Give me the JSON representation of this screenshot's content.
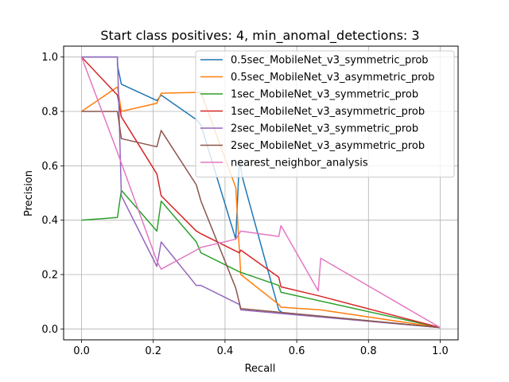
{
  "chart_data": {
    "type": "line",
    "title": "Start class positives: 4, min_anomal_detections: 3",
    "xlabel": "Recall",
    "ylabel": "Precision",
    "xlim": [
      -0.05,
      1.05
    ],
    "ylim": [
      -0.04,
      1.04
    ],
    "xticks": [
      "0.0",
      "0.2",
      "0.4",
      "0.6",
      "0.8",
      "1.0"
    ],
    "yticks": [
      "0.0",
      "0.2",
      "0.4",
      "0.6",
      "0.8",
      "1.0"
    ],
    "grid": true,
    "legend_position": "top-right",
    "series": [
      {
        "name": "0.5sec_MobileNet_v3_symmetric_prob",
        "color": "#1f77b4",
        "x": [
          0.0,
          0.1,
          0.1,
          0.111,
          0.21,
          0.222,
          0.32,
          0.333,
          0.43,
          0.44,
          0.45,
          0.55,
          0.56,
          1.0
        ],
        "y": [
          1.0,
          1.0,
          0.97,
          0.9,
          0.84,
          0.86,
          0.77,
          0.75,
          0.33,
          0.62,
          0.55,
          0.07,
          0.06,
          0.005
        ]
      },
      {
        "name": "0.5sec_MobileNet_v3_asymmetric_prob",
        "color": "#ff7f0e",
        "x": [
          0.0,
          0.1,
          0.111,
          0.21,
          0.222,
          0.32,
          0.333,
          0.43,
          0.444,
          0.55,
          0.556,
          0.667,
          1.0
        ],
        "y": [
          0.8,
          0.89,
          0.8,
          0.83,
          0.867,
          0.87,
          0.87,
          0.52,
          0.2,
          0.09,
          0.08,
          0.07,
          0.005
        ]
      },
      {
        "name": "1sec_MobileNet_v3_symmetric_prob",
        "color": "#2ca02c",
        "x": [
          0.0,
          0.1,
          0.111,
          0.21,
          0.222,
          0.32,
          0.333,
          0.44,
          0.55,
          0.556,
          1.0
        ],
        "y": [
          0.4,
          0.41,
          0.51,
          0.36,
          0.47,
          0.32,
          0.28,
          0.21,
          0.16,
          0.135,
          0.005
        ]
      },
      {
        "name": "1sec_MobileNet_v3_asymmetric_prob",
        "color": "#d62728",
        "x": [
          0.0,
          0.1,
          0.111,
          0.21,
          0.222,
          0.32,
          0.333,
          0.44,
          0.444,
          0.55,
          0.556,
          0.667,
          1.0
        ],
        "y": [
          1.0,
          0.86,
          0.78,
          0.57,
          0.49,
          0.36,
          0.35,
          0.28,
          0.29,
          0.19,
          0.155,
          0.12,
          0.005
        ]
      },
      {
        "name": "2sec_MobileNet_v3_symmetric_prob",
        "color": "#9467bd",
        "x": [
          0.0,
          0.1,
          0.103,
          0.111,
          0.21,
          0.222,
          0.32,
          0.333,
          0.44,
          0.444,
          1.0
        ],
        "y": [
          1.0,
          1.0,
          0.87,
          0.49,
          0.23,
          0.32,
          0.16,
          0.16,
          0.09,
          0.07,
          0.005
        ]
      },
      {
        "name": "2sec_MobileNet_v3_asymmetric_prob",
        "color": "#8c564b",
        "x": [
          0.0,
          0.1,
          0.111,
          0.21,
          0.222,
          0.32,
          0.333,
          0.43,
          0.444,
          1.0
        ],
        "y": [
          0.8,
          0.8,
          0.7,
          0.67,
          0.73,
          0.53,
          0.47,
          0.15,
          0.075,
          0.005
        ]
      },
      {
        "name": "nearest_neighbor_analysis",
        "color": "#e377c2",
        "x": [
          0.0,
          0.1,
          0.21,
          0.222,
          0.32,
          0.333,
          0.43,
          0.444,
          0.55,
          0.556,
          0.66,
          0.667,
          1.0
        ],
        "y": [
          1.0,
          0.65,
          0.25,
          0.22,
          0.29,
          0.3,
          0.33,
          0.36,
          0.34,
          0.38,
          0.14,
          0.26,
          0.005
        ]
      }
    ]
  }
}
